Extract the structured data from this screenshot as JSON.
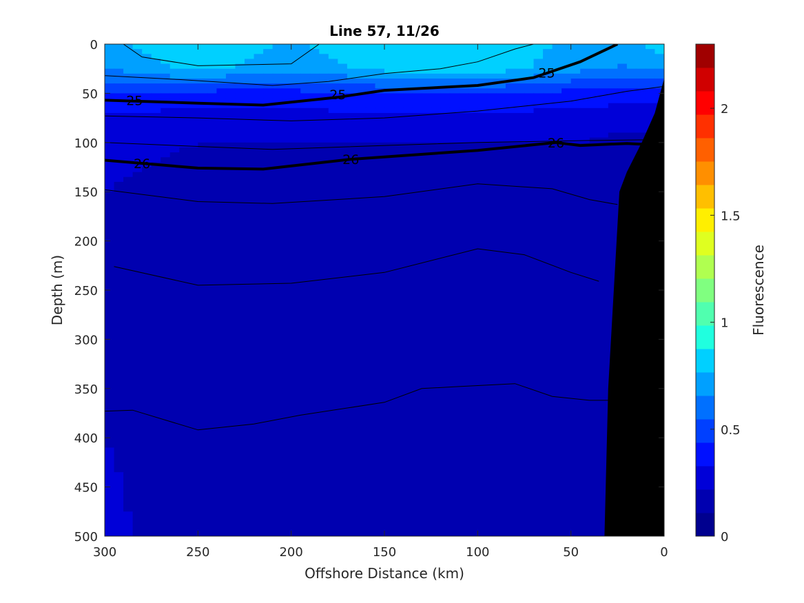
{
  "chart_data": {
    "type": "heatmap",
    "title": "Line 57, 11/26",
    "xlabel": "Offshore Distance (km)",
    "ylabel": "Depth (m)",
    "colorbar_label": "Fluorescence",
    "xlim": [
      300,
      0
    ],
    "ylim": [
      500,
      0
    ],
    "x_reversed": true,
    "y_reversed": true,
    "x_ticks": [
      300,
      250,
      200,
      150,
      100,
      50,
      0
    ],
    "y_ticks": [
      0,
      50,
      100,
      150,
      200,
      250,
      300,
      350,
      400,
      450,
      500
    ],
    "colorbar": {
      "range": [
        0,
        2.3
      ],
      "ticks": [
        0,
        0.5,
        1,
        1.5,
        2
      ],
      "colors": [
        "#00008f",
        "#0000b0",
        "#0000d8",
        "#0010ff",
        "#0040ff",
        "#0070ff",
        "#00a0ff",
        "#00d0ff",
        "#20ffdf",
        "#50ffaf",
        "#80ff80",
        "#b0ff50",
        "#dfff20",
        "#ffef00",
        "#ffbf00",
        "#ff8f00",
        "#ff6000",
        "#ff3000",
        "#ff0000",
        "#d00000",
        "#a00000"
      ]
    },
    "fluorescence_field": {
      "x": [
        300,
        250,
        200,
        150,
        100,
        50,
        25,
        0
      ],
      "depth": [
        0,
        25,
        50,
        75,
        100,
        150,
        200,
        300,
        400,
        500
      ],
      "values": [
        [
          0.75,
          0.85,
          0.75,
          0.85,
          0.85,
          0.75,
          0.7,
          0.85
        ],
        [
          0.65,
          0.8,
          0.7,
          0.8,
          0.85,
          0.7,
          0.65,
          0.65
        ],
        [
          0.45,
          0.4,
          0.4,
          0.45,
          0.45,
          0.4,
          0.4,
          0.4
        ],
        [
          0.3,
          0.28,
          0.28,
          0.3,
          0.3,
          0.28,
          0.25,
          0.25
        ],
        [
          0.25,
          0.22,
          0.22,
          0.22,
          0.22,
          0.22,
          0.2,
          0.2
        ],
        [
          0.22,
          0.18,
          0.18,
          0.18,
          0.18,
          0.15,
          0.15,
          0.15
        ],
        [
          0.22,
          0.15,
          0.15,
          0.15,
          0.15,
          0.15,
          0.15,
          0.15
        ],
        [
          0.22,
          0.15,
          0.15,
          0.15,
          0.15,
          0.12,
          0.12,
          0.12
        ],
        [
          0.22,
          0.15,
          0.15,
          0.15,
          0.15,
          0.12,
          0.12,
          0.12
        ],
        [
          0.25,
          0.15,
          0.15,
          0.15,
          0.15,
          0.12,
          0.12,
          0.12
        ]
      ]
    },
    "density_contours": [
      {
        "label": "",
        "bold": false,
        "points": [
          [
            290,
            0
          ],
          [
            280,
            13
          ],
          [
            250,
            22
          ],
          [
            200,
            20
          ],
          [
            185,
            0
          ]
        ]
      },
      {
        "label": "",
        "bold": false,
        "points": [
          [
            300,
            32
          ],
          [
            260,
            36
          ],
          [
            210,
            42
          ],
          [
            180,
            38
          ],
          [
            150,
            30
          ],
          [
            120,
            25
          ],
          [
            100,
            18
          ],
          [
            80,
            5
          ],
          [
            70,
            0
          ]
        ]
      },
      {
        "label": "25",
        "bold": true,
        "label_positions": [
          [
            284,
            57
          ],
          [
            175,
            51
          ],
          [
            63,
            29
          ]
        ],
        "points": [
          [
            300,
            57
          ],
          [
            250,
            60
          ],
          [
            215,
            62
          ],
          [
            175,
            54
          ],
          [
            150,
            47
          ],
          [
            100,
            42
          ],
          [
            70,
            34
          ],
          [
            45,
            18
          ],
          [
            25,
            0
          ]
        ]
      },
      {
        "label": "",
        "bold": false,
        "points": [
          [
            300,
            73
          ],
          [
            250,
            75
          ],
          [
            200,
            78
          ],
          [
            150,
            75
          ],
          [
            100,
            68
          ],
          [
            50,
            58
          ],
          [
            20,
            48
          ],
          [
            0,
            43
          ]
        ]
      },
      {
        "label": "",
        "bold": false,
        "points": [
          [
            300,
            100
          ],
          [
            250,
            104
          ],
          [
            210,
            107
          ],
          [
            150,
            103
          ],
          [
            100,
            100
          ],
          [
            40,
            98
          ],
          [
            0,
            97
          ]
        ]
      },
      {
        "label": "26",
        "bold": true,
        "label_positions": [
          [
            280,
            121
          ],
          [
            168,
            117
          ],
          [
            58,
            100
          ]
        ],
        "points": [
          [
            300,
            118
          ],
          [
            250,
            126
          ],
          [
            215,
            127
          ],
          [
            168,
            117
          ],
          [
            100,
            108
          ],
          [
            58,
            100
          ],
          [
            45,
            103
          ],
          [
            20,
            101
          ],
          [
            8,
            102
          ]
        ]
      },
      {
        "label": "",
        "bold": false,
        "points": [
          [
            300,
            148
          ],
          [
            250,
            160
          ],
          [
            210,
            162
          ],
          [
            150,
            155
          ],
          [
            100,
            142
          ],
          [
            60,
            147
          ],
          [
            40,
            158
          ],
          [
            25,
            163
          ]
        ]
      },
      {
        "label": "",
        "bold": false,
        "points": [
          [
            295,
            226
          ],
          [
            250,
            245
          ],
          [
            200,
            243
          ],
          [
            150,
            232
          ],
          [
            100,
            208
          ],
          [
            75,
            214
          ],
          [
            50,
            232
          ],
          [
            35,
            241
          ]
        ]
      },
      {
        "label": "",
        "bold": false,
        "points": [
          [
            300,
            373
          ],
          [
            285,
            372
          ],
          [
            250,
            392
          ],
          [
            220,
            386
          ],
          [
            195,
            377
          ],
          [
            150,
            364
          ],
          [
            130,
            350
          ],
          [
            110,
            348
          ],
          [
            80,
            345
          ],
          [
            60,
            358
          ],
          [
            40,
            362
          ],
          [
            30,
            362
          ]
        ]
      }
    ],
    "bathymetry_mask": [
      [
        32,
        500
      ],
      [
        30,
        350
      ],
      [
        27,
        250
      ],
      [
        24,
        150
      ],
      [
        20,
        130
      ],
      [
        12,
        100
      ],
      [
        5,
        70
      ],
      [
        0,
        35
      ],
      [
        0,
        500
      ]
    ]
  }
}
